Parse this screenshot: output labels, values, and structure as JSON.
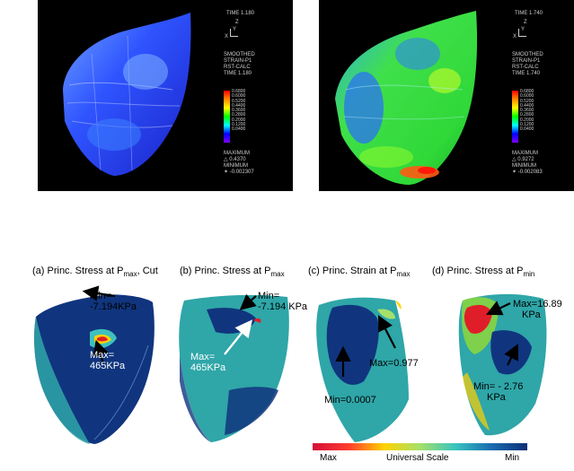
{
  "top_left": {
    "time": "TIME 1.180",
    "axes": {
      "z": "Z",
      "y": "Y",
      "x": "X"
    },
    "info": [
      "SMOOTHED",
      "STRAIN-P1",
      "RST-CALC",
      "TIME 1.180"
    ],
    "legend": [
      "0.6800",
      "0.6000",
      "0.5200",
      "0.4400",
      "0.3600",
      "0.2800",
      "0.2000",
      "0.1200",
      "0.0400"
    ],
    "maximum_label": "MAXIMUM",
    "maximum_value": "△ 0.4370",
    "minimum_label": "MINIMUM",
    "minimum_value": "✶ -0.002307"
  },
  "top_right": {
    "time": "TIME 1.740",
    "axes": {
      "z": "Z",
      "y": "Y",
      "x": "X"
    },
    "info": [
      "SMOOTHED",
      "STRAIN-P1",
      "RST-CALC",
      "TIME 1.740"
    ],
    "legend": [
      "0.6800",
      "0.6000",
      "0.5200",
      "0.4400",
      "0.3600",
      "0.2800",
      "0.2000",
      "0.1200",
      "0.0400"
    ],
    "maximum_label": "MAXIMUM",
    "maximum_value": "△ 0.9272",
    "minimum_label": "MINIMUM",
    "minimum_value": "✶ -0.002083"
  },
  "panels": [
    {
      "caption_prefix": "(a) Princ. Stress at P",
      "caption_sub": "max",
      "caption_suffix": ", Cut",
      "min_label": "Min=",
      "min_value": "-7.194KPa",
      "max_label": "Max=",
      "max_value": "465KPa"
    },
    {
      "caption_prefix": "(b) Princ. Stress at P",
      "caption_sub": "max",
      "caption_suffix": "",
      "min_label": "Min=",
      "min_value": "-7.194 KPa",
      "max_label": "Max=",
      "max_value": "465KPa"
    },
    {
      "caption_prefix": "(c) Princ. Strain at P",
      "caption_sub": "max",
      "caption_suffix": "",
      "min_label": "Min=0.0007",
      "max_label": "Max=0.977"
    },
    {
      "caption_prefix": "(d) Princ. Stress at P",
      "caption_sub": "min",
      "caption_suffix": "",
      "min_label": "Min= - 2.76",
      "min_value": "KPa",
      "max_label": "Max=16.89",
      "max_value": "KPa"
    }
  ],
  "scale": {
    "max": "Max",
    "title": "Universal Scale",
    "min": "Min"
  },
  "colors": {
    "fea_dark_blue": "#1a2bd0",
    "fea_mid_blue": "#2e5cff",
    "fea_green": "#39d82a",
    "stress_navy": "#10357e",
    "stress_teal": "#2fa6a8",
    "stress_red": "#e01e2a"
  }
}
